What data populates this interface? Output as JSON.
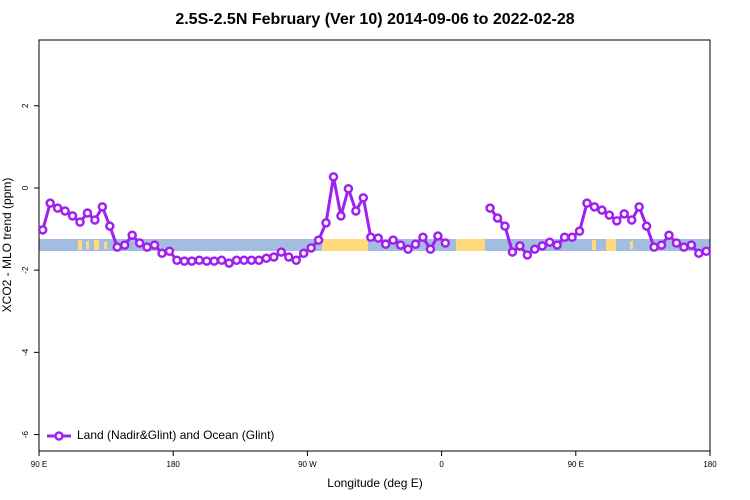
{
  "chart_data": {
    "type": "line",
    "title": "2.5S-2.5N February (Ver 10)   2014-09-06 to 2022-02-28",
    "x_label": "Longitude (deg E)",
    "y_label": "XCO2 - MLO trend (ppm)",
    "xlim": [
      90,
      540
    ],
    "xticks": [
      {
        "value": 90,
        "label": "90 E"
      },
      {
        "value": 180,
        "label": "180"
      },
      {
        "value": 270,
        "label": "90 W"
      },
      {
        "value": 360,
        "label": "0"
      },
      {
        "value": 450,
        "label": "90 E"
      },
      {
        "value": 540,
        "label": "180"
      }
    ],
    "ylim": [
      -6.4,
      3.6
    ],
    "yticks": [
      -6,
      -4,
      -2,
      0,
      2
    ],
    "legend": "bottom-left",
    "x": [
      92.5,
      97.5,
      102.5,
      107.5,
      112.5,
      117.5,
      122.5,
      127.5,
      132.5,
      137.5,
      142.5,
      147.5,
      152.5,
      157.5,
      162.5,
      167.5,
      172.5,
      177.5,
      182.5,
      187.5,
      192.5,
      197.5,
      202.5,
      207.5,
      212.5,
      217.5,
      222.5,
      227.5,
      232.5,
      237.5,
      242.5,
      247.5,
      252.5,
      257.5,
      262.5,
      267.5,
      272.5,
      277.5,
      282.5,
      287.5,
      292.5,
      297.5,
      302.5,
      307.5,
      312.5,
      317.5,
      322.5,
      327.5,
      332.5,
      337.5,
      342.5,
      347.5,
      352.5,
      357.5,
      362.5,
      367.5,
      372.5,
      377.5,
      382.5,
      387.5,
      392.5,
      397.5,
      402.5,
      407.5,
      412.5,
      417.5,
      422.5,
      427.5,
      432.5,
      437.5,
      442.5,
      447.5,
      452.5,
      457.5,
      462.5,
      467.5,
      472.5,
      477.5,
      482.5,
      487.5,
      492.5,
      497.5,
      502.5,
      507.5,
      512.5,
      517.5,
      522.5,
      527.5,
      532.5,
      537.5
    ],
    "series": [
      {
        "name": "Land (Nadir&Glint) and Ocean (Glint)",
        "color": "#a020f0",
        "values": [
          -1.02,
          -0.37,
          -0.49,
          -0.56,
          -0.68,
          -0.83,
          -0.61,
          -0.78,
          -0.46,
          -0.93,
          -1.44,
          -1.39,
          -1.15,
          -1.34,
          -1.44,
          -1.39,
          -1.59,
          -1.54,
          -1.76,
          -1.78,
          -1.78,
          -1.76,
          -1.78,
          -1.78,
          -1.76,
          -1.83,
          -1.76,
          -1.76,
          -1.76,
          -1.76,
          -1.71,
          -1.68,
          -1.56,
          -1.68,
          -1.76,
          -1.59,
          -1.46,
          -1.27,
          -0.85,
          0.27,
          -0.68,
          -0.02,
          -0.56,
          -0.24,
          -1.2,
          -1.22,
          -1.37,
          -1.27,
          -1.39,
          -1.49,
          -1.37,
          -1.2,
          -1.49,
          -1.17,
          -1.34,
          null,
          null,
          null,
          null,
          null,
          -0.49,
          -0.73,
          -0.93,
          -1.56,
          -1.41,
          -1.63,
          -1.49,
          -1.41,
          -1.32,
          -1.39,
          -1.2,
          -1.2,
          -1.05,
          -0.37,
          -0.46,
          -0.54,
          -0.66,
          -0.8,
          -0.63,
          -0.78,
          -0.46,
          -0.93,
          -1.44,
          -1.39,
          -1.15,
          -1.34,
          -1.44,
          -1.39,
          -1.59,
          -1.54
        ]
      }
    ]
  }
}
